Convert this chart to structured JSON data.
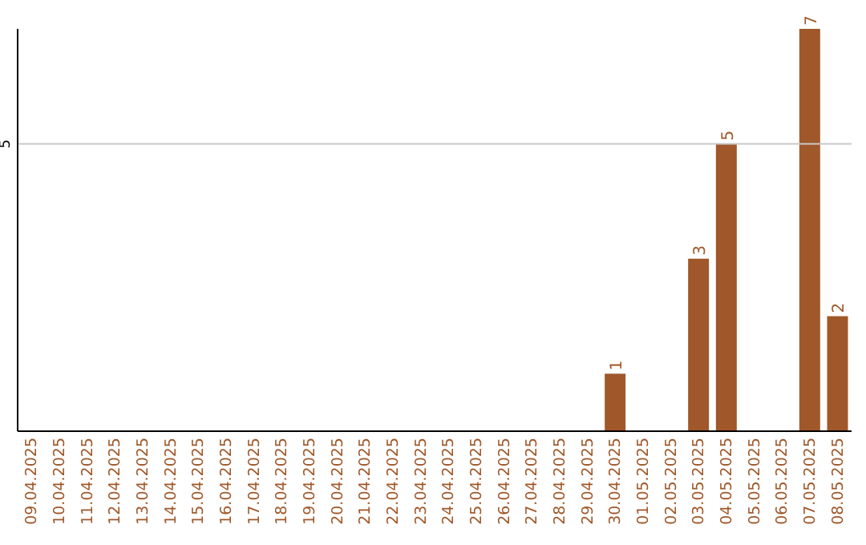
{
  "chart_data": {
    "type": "bar",
    "categories": [
      "09.04.2025",
      "10.04.2025",
      "11.04.2025",
      "12.04.2025",
      "13.04.2025",
      "14.04.2025",
      "15.04.2025",
      "16.04.2025",
      "17.04.2025",
      "18.04.2025",
      "19.04.2025",
      "20.04.2025",
      "21.04.2025",
      "22.04.2025",
      "23.04.2025",
      "24.04.2025",
      "25.04.2025",
      "26.04.2025",
      "27.04.2025",
      "28.04.2025",
      "29.04.2025",
      "30.04.2025",
      "01.05.2025",
      "02.05.2025",
      "03.05.2025",
      "04.05.2025",
      "05.05.2025",
      "06.05.2025",
      "07.05.2025",
      "08.05.2025"
    ],
    "values": [
      null,
      null,
      null,
      null,
      null,
      null,
      null,
      null,
      null,
      null,
      null,
      null,
      null,
      null,
      null,
      null,
      null,
      null,
      null,
      null,
      null,
      1,
      null,
      null,
      3,
      5,
      null,
      null,
      7,
      2
    ],
    "value_labels": [
      null,
      null,
      null,
      null,
      null,
      null,
      null,
      null,
      null,
      null,
      null,
      null,
      null,
      null,
      null,
      null,
      null,
      null,
      null,
      null,
      null,
      "1",
      null,
      null,
      "3",
      "5",
      null,
      null,
      "7",
      "2"
    ],
    "color": "#a0582a",
    "ref_lines": [
      {
        "axis": "y",
        "value": 5,
        "label": "5",
        "color": "#c8c8c8"
      }
    ]
  }
}
